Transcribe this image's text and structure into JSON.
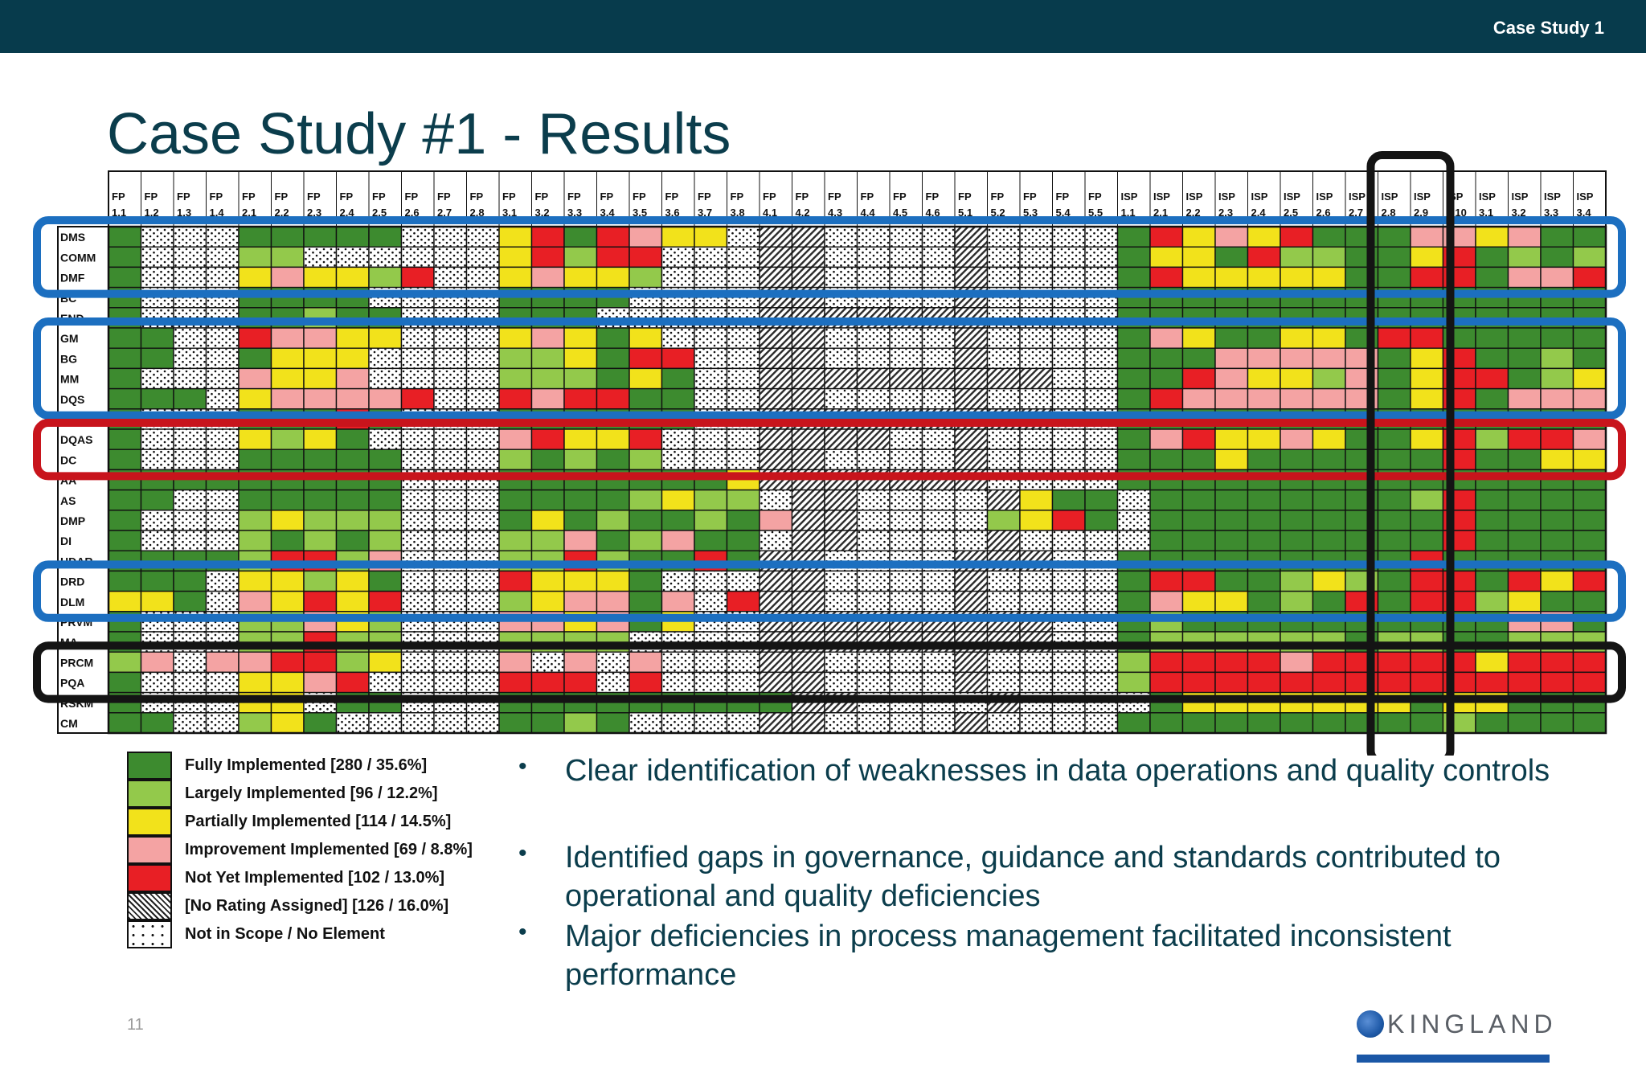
{
  "header": {
    "label": "Case Study 1"
  },
  "title": "Case Study #1 - Results",
  "page_number": "11",
  "logo": {
    "text": "KINGLAND"
  },
  "colors": {
    "F": "#3d8b2f",
    "L": "#93c94b",
    "P": "#f2e21b",
    "I": "#f4a3a3",
    "N": "#e81f25",
    "H": "hatch",
    "D": "dots"
  },
  "chart_data": {
    "type": "heatmap",
    "columns": [
      "FP 1.1",
      "FP 1.2",
      "FP 1.3",
      "FP 1.4",
      "FP 2.1",
      "FP 2.2",
      "FP 2.3",
      "FP 2.4",
      "FP 2.5",
      "FP 2.6",
      "FP 2.7",
      "FP 2.8",
      "FP 3.1",
      "FP 3.2",
      "FP 3.3",
      "FP 3.4",
      "FP 3.5",
      "FP 3.6",
      "FP 3.7",
      "FP 3.8",
      "FP 4.1",
      "FP 4.2",
      "FP 4.3",
      "FP 4.4",
      "FP 4.5",
      "FP 4.6",
      "FP 5.1",
      "FP 5.2",
      "FP 5.3",
      "FP 5.4",
      "FP 5.5",
      "ISP 1.1",
      "ISP 2.1",
      "ISP 2.2",
      "ISP 2.3",
      "ISP 2.4",
      "ISP 2.5",
      "ISP 2.6",
      "ISP 2.7",
      "ISP 2.8",
      "ISP 2.9",
      "ISP 2.10",
      "ISP 3.1",
      "ISP 3.2",
      "ISP 3.3",
      "ISP 3.4"
    ],
    "rows": [
      "DMS",
      "COMM",
      "DMF",
      "BC",
      "END",
      "GM",
      "BG",
      "MM",
      "DQS",
      "DP",
      "DQAS",
      "DC",
      "AA",
      "AS",
      "DMP",
      "DI",
      "HDAR",
      "DRD",
      "DLM",
      "PRVM",
      "MA",
      "PRCM",
      "PQA",
      "RSKM",
      "CM"
    ],
    "cells": [
      "FDDDFFFFFDDDPNFNIPPDHHDDDDHDDDDFNPIPNFFFIIPIFF",
      "FDDDLLDDDDDDPNLNNDDDHHDDDDHDDDDFPPFNLLFFPNFLFL",
      "FDDDPIPPLNDDPIPPLDDDHHDDDDHDDDDFNPPPPPFFNNFIINN",
      "FDDDFFFFDDDDFFFFDDDDHHDDDDHDDDDFFFFFFFFFFFFFFFF",
      "FDDDFFLFFDDDFFFDDDDDHHHHHHHDDDDFFFFFFFFFFFFFFFF",
      "FFDDNIIPPDDDPIPFPDDDHHDDDDHDDDDFIPFFPPFNNFFFFFF",
      "FFDDFPPPDDDDLLPFNNDDHHDDDDHDDDDFFFIIIIIFPNFFLFF",
      "FDDDIPPIDDDDLLLFPFDDHHHHHHHHHDDFFNIPPLIFPNNFLPF",
      "FFFDPIIIINDDNINNFFDDHHDDDDHDDDDFNIIIIIIFPNFIIIF",
      "FDDDFFFNFDDDFFFFFFDDHHHHHHHHHDDFFFFFFFFFFFFFFFF",
      "FDDDPLPFDDDDINPPNDDDHHHHDDHDDDDFINPPIPFFPNLNNIP",
      "FDDDFFFFFDDDLFLFLDDDHHDDDDHDDDDFFFPFFFFFFNFFPPNN",
      "FFFFFFFFFDDDFFFFFFFPHHHHHHHDDDDFFFFFFFFFFFFFFFF",
      "FFDDFFFFFDDDFFFFLPLLDHHDDDDHPFFDFFFFFFFFLNFFFFF",
      "FDDDLPLLLDDDFPFLFFLFIHHDDDDLPNFDFFFFFFFFFNFFFFF",
      "FDDDLFLFLDDDLLIFLIFFDHHDDDDHDDDDFFFFFFFFFNFFFFF",
      "FFFFLNNLIDDDLLNLFFNFHHDDDDHHHDDFFFFFFFFFNFFFFFF",
      "FFFDPPLPFDDDNPPPFDDDHHDDDDHDDDDFNNFFLPLFNNFNPNN",
      "PPFDIPNPNDDDLPIIFIDNHHDDDDHDDDDFIPPFLFNFNNLPFFL",
      "FDDDLLIPLDDDIIPIFPDDHHHHHHHHHDDFLFFFFFFFFFFIIFF",
      "FDDDLLNLLDDDLLLLDDDDHHHHHHHHHDDFLLLLLLFLLFFLLLP",
      "LIDIINNLPDDDIDIDIDDDHHDDDDHDDDDLNNNNINNNNNPNNNN",
      "FDDDPPINDDDDNNNDNDDDHHDDDDHDDDDLNNNNNNNNNNNNNNNN",
      "FDDDPPDFFDDDFFFFFFFFFHHDDDDHDDDDFPPPPPPPFPPFFFF",
      "FFDDLPFDDDDDFFLFDDDDHHDDDDHDDDDFFFFFFFFFFLFFFFF"
    ],
    "highlight_groups": [
      {
        "rows": [
          "DMS",
          "COMM",
          "DMF"
        ],
        "color": "#1c6fc0"
      },
      {
        "rows": [
          "GM",
          "BG",
          "MM",
          "DQS"
        ],
        "color": "#1c6fc0"
      },
      {
        "rows": [
          "DQAS",
          "DC"
        ],
        "color": "#c8141c"
      },
      {
        "rows": [
          "DRD",
          "DLM"
        ],
        "color": "#1c6fc0"
      },
      {
        "rows": [
          "PRCM",
          "PQA"
        ],
        "color": "#141414"
      }
    ],
    "highlight_columns": {
      "columns": [
        "ISP 2.8",
        "ISP 2.9"
      ],
      "color": "#141414"
    },
    "legend": [
      {
        "key": "F",
        "label": "Fully Implemented [280 / 35.6%]"
      },
      {
        "key": "L",
        "label": "Largely Implemented [96 / 12.2%]"
      },
      {
        "key": "P",
        "label": "Partially Implemented [114 / 14.5%]"
      },
      {
        "key": "I",
        "label": "Improvement Implemented [69 / 8.8%]"
      },
      {
        "key": "N",
        "label": "Not Yet Implemented [102 / 13.0%]"
      },
      {
        "key": "H",
        "label": "[No Rating Assigned] [126 / 16.0%]"
      },
      {
        "key": "D",
        "label": "Not in Scope / No Element"
      }
    ]
  },
  "bullets": [
    "Clear identification of weaknesses in data operations and quality controls",
    "Identified gaps in governance, guidance and standards contributed to operational and quality deficiencies",
    "Major deficiencies in process management facilitated inconsistent performance"
  ]
}
